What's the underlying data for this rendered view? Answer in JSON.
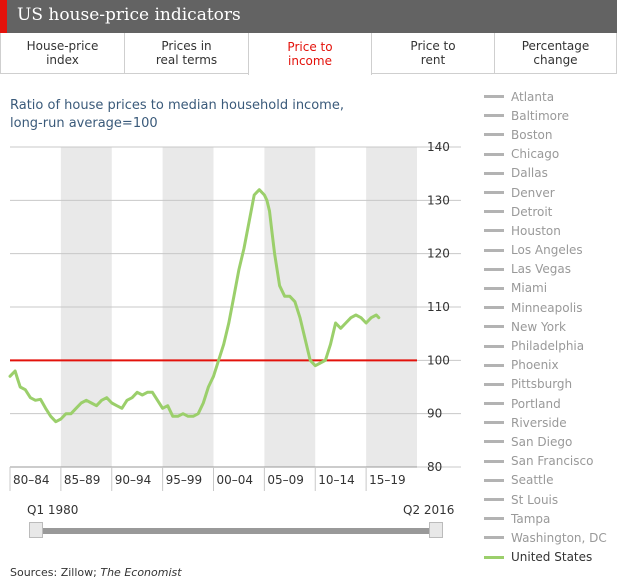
{
  "header": {
    "title": "US house-price indicators"
  },
  "tabs": [
    {
      "label": "House-price\nindex",
      "active": false
    },
    {
      "label": "Prices in\nreal terms",
      "active": false
    },
    {
      "label": "Price to\nincome",
      "active": true
    },
    {
      "label": "Price to\nrent",
      "active": false
    },
    {
      "label": "Percentage\nchange",
      "active": false
    }
  ],
  "chart": {
    "subtitle": "Ratio of house prices to median household income,\nlong-run average=100"
  },
  "slider": {
    "start_label": "Q1 1980",
    "end_label": "Q2 2016"
  },
  "sources": {
    "prefix": "Sources: Zillow; ",
    "publication": "The Economist"
  },
  "legend": [
    "Atlanta",
    "Baltimore",
    "Boston",
    "Chicago",
    "Dallas",
    "Denver",
    "Detroit",
    "Houston",
    "Los Angeles",
    "Las Vegas",
    "Miami",
    "Minneapolis",
    "New York",
    "Philadelphia",
    "Phoenix",
    "Pittsburgh",
    "Portland",
    "Riverside",
    "San Diego",
    "San Francisco",
    "Seattle",
    "St Louis",
    "Tampa",
    "Washington, DC",
    "United States"
  ],
  "colors": {
    "accent": "#e3120b",
    "us_line": "#9bcf6b",
    "reference": "#e3120b",
    "band": "#e9e9e9",
    "legend_inactive": "#b3b3b3"
  },
  "chart_data": {
    "type": "line",
    "title": "Ratio of house prices to median household income, long-run average=100",
    "x_categories": [
      "80–84",
      "85–89",
      "90–94",
      "95–99",
      "00–04",
      "05–09",
      "10–14",
      "15–19"
    ],
    "y_ticks": [
      80,
      90,
      100,
      110,
      120,
      130,
      140
    ],
    "ylim": [
      80,
      140
    ],
    "xlim": [
      1980,
      2020
    ],
    "reference_line": 100,
    "series": [
      {
        "name": "United States",
        "x": [
          1980,
          1980.25,
          1980.5,
          1980.75,
          1981,
          1981.5,
          1982,
          1982.5,
          1983,
          1983.5,
          1984,
          1984.5,
          1985,
          1985.5,
          1986,
          1986.5,
          1987,
          1987.5,
          1988,
          1988.5,
          1989,
          1989.5,
          1990,
          1990.5,
          1991,
          1991.5,
          1992,
          1992.5,
          1993,
          1993.5,
          1994,
          1994.5,
          1995,
          1995.5,
          1996,
          1996.5,
          1997,
          1997.5,
          1998,
          1998.5,
          1999,
          1999.5,
          2000,
          2000.5,
          2001,
          2001.5,
          2002,
          2002.5,
          2003,
          2003.5,
          2004,
          2004.5,
          2005,
          2005.25,
          2005.5,
          2005.75,
          2006,
          2006.5,
          2007,
          2007.5,
          2008,
          2008.5,
          2009,
          2009.5,
          2010,
          2010.5,
          2011,
          2011.5,
          2012,
          2012.5,
          2013,
          2013.5,
          2014,
          2014.5,
          2015,
          2015.5,
          2016,
          2016.25
        ],
        "y": [
          97,
          97.5,
          98,
          96.5,
          95,
          94.5,
          93,
          92.5,
          92.7,
          91,
          89.5,
          88.5,
          89,
          90,
          90,
          91,
          92,
          92.5,
          92,
          91.5,
          92.5,
          93,
          92,
          91.5,
          91,
          92.5,
          93,
          94,
          93.5,
          94,
          94,
          92.5,
          91,
          91.5,
          89.5,
          89.5,
          90,
          89.5,
          89.5,
          90,
          92,
          95,
          97,
          100,
          103,
          107,
          112,
          117,
          121,
          126,
          131,
          132,
          131,
          130,
          128,
          124,
          120,
          114,
          112,
          112,
          111,
          108,
          104,
          100,
          99,
          99.5,
          100,
          103,
          107,
          106,
          107,
          108,
          108.5,
          108,
          107,
          108,
          108.5,
          108
        ]
      }
    ]
  }
}
